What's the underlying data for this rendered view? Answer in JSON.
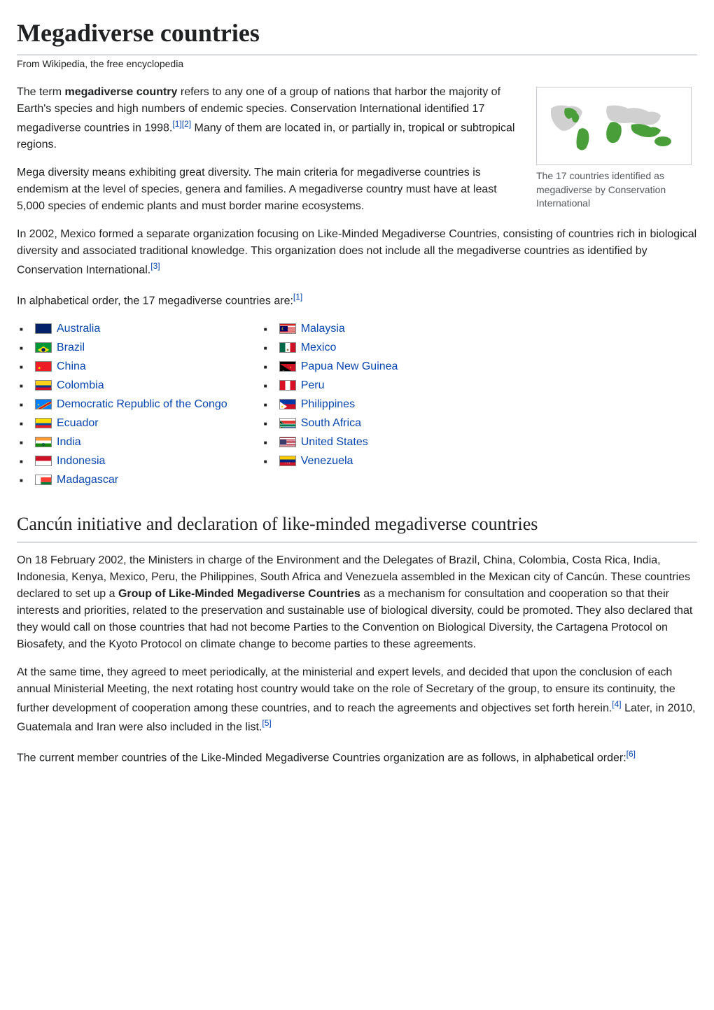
{
  "title": "Megadiverse countries",
  "subtitle": "From Wikipedia, the free encyclopedia",
  "intro_p1_pre": "The term ",
  "intro_bold": "megadiverse country",
  "intro_p1_mid": " refers to any one of a group of nations that harbor the majority of Earth's species and high numbers of endemic species. Conservation International identified 17 megadiverse countries in 1998.",
  "ref1": "[1]",
  "ref2": "[2]",
  "intro_p1_post": " Many of them are located in, or partially in, tropical or subtropical regions.",
  "intro_p2": "Mega diversity means exhibiting great diversity. The main criteria for megadiverse countries is endemism at the level of species, genera and families. A megadiverse country must have at least 5,000 species of endemic plants and must border marine ecosystems.",
  "intro_p3_pre": "In 2002, Mexico formed a separate organization focusing on Like-Minded Megadiverse Countries, consisting of countries rich in biological diversity and associated traditional knowledge. This organization does not include all the megadiverse countries as identified by Conservation International.",
  "ref3": "[3]",
  "intro_p4_pre": "In alphabetical order, the 17 megadiverse countries are:",
  "ref1b": "[1]",
  "caption": "The 17 countries identified as megadiverse by Conservation International",
  "countries_col1": [
    {
      "name": "Australia"
    },
    {
      "name": "Brazil"
    },
    {
      "name": "China"
    },
    {
      "name": "Colombia"
    },
    {
      "name": "Democratic Republic of the Congo"
    },
    {
      "name": "Ecuador"
    },
    {
      "name": "India"
    },
    {
      "name": "Indonesia"
    },
    {
      "name": "Madagascar"
    }
  ],
  "countries_col2": [
    {
      "name": "Malaysia"
    },
    {
      "name": "Mexico"
    },
    {
      "name": "Papua New Guinea"
    },
    {
      "name": "Peru"
    },
    {
      "name": "Philippines"
    },
    {
      "name": "South Africa"
    },
    {
      "name": "United States"
    },
    {
      "name": "Venezuela"
    }
  ],
  "h2": "Cancún initiative and declaration of like-minded megadiverse countries",
  "sec_p1_pre": "On 18 February 2002, the Ministers in charge of the Environment and the Delegates of Brazil, China, Colombia, Costa Rica, India, Indonesia, Kenya, Mexico, Peru, the Philippines, South Africa and Venezuela assembled in the Mexican city of Cancún. These countries declared to set up a ",
  "sec_p1_bold": "Group of Like-Minded Megadiverse Countries",
  "sec_p1_post": " as a mechanism for consultation and cooperation so that their interests and priorities, related to the preservation and sustainable use of biological diversity, could be promoted. They also declared that they would call on those countries that had not become Parties to the Convention on Biological Diversity, the Cartagena Protocol on Biosafety, and the Kyoto Protocol on climate change to become parties to these agreements.",
  "sec_p2_pre": "At the same time, they agreed to meet periodically, at the ministerial and expert levels, and decided that upon the conclusion of each annual Ministerial Meeting, the next rotating host country would take on the role of Secretary of the group, to ensure its continuity, the further development of cooperation among these countries, and to reach the agreements and objectives set forth herein.",
  "ref4": "[4]",
  "sec_p2_mid": " Later, in 2010, Guatemala and Iran were also included in the list.",
  "ref5": "[5]",
  "sec_p3_pre": "The current member countries of the Like-Minded Megadiverse Countries organization are as follows, in alphabetical order:",
  "ref6": "[6]",
  "flags": {
    "Australia": {
      "bg": "#012169",
      "deco": "radial-gradient(circle at 75% 55%, white 1px, transparent 2px), radial-gradient(circle at 85% 30%, white 1px, transparent 2px), linear-gradient(135deg, transparent 45%, #c8102e 45%, #c8102e 55%, transparent 55%), linear-gradient(45deg, transparent 45%, #c8102e 45%, #c8102e 55%, transparent 55%)",
      "decoPos": "0 0, 0 0, 0 0/12px 8px no-repeat, 0 0/12px 8px no-repeat"
    },
    "Brazil": {
      "bg": "#009739",
      "svg": "<svg viewBox='0 0 24 15'><polygon points='12,2 21,7.5 12,13 3,7.5' fill='%23FEDD00'/><circle cx='12' cy='7.5' r='3' fill='%23012169'/></svg>"
    },
    "China": {
      "bg": "#EE1C25",
      "svg": "<svg viewBox='0 0 24 15'><text x='3' y='8' font-size='6' fill='%23FFFF00'>★</text></svg>"
    },
    "Colombia": {
      "bg": "linear-gradient(to bottom, #FCD116 0%, #FCD116 50%, #003893 50%, #003893 75%, #CE1126 75%, #CE1126 100%)"
    },
    "Democratic Republic of the Congo": {
      "bg": "#007FFF",
      "svg": "<svg viewBox='0 0 24 15'><polygon points='0,12 0,15 3,15 24,3 24,0 21,0' fill='%23F7D618'/><polygon points='0,13 0,15 1.5,15 24,2 24,0 22.5,0' fill='%23CE1021'/><text x='2' y='6' font-size='5' fill='%23F7D618'>★</text></svg>"
    },
    "Ecuador": {
      "bg": "linear-gradient(to bottom, #FFDD00 0%, #FFDD00 50%, #034EA2 50%, #034EA2 75%, #EC1C24 75%, #EC1C24 100%)"
    },
    "India": {
      "bg": "linear-gradient(to bottom, #FF9933 0%, #FF9933 33%, #FFFFFF 33%, #FFFFFF 67%, #138808 67%, #138808 100%)",
      "svg": "<svg viewBox='0 0 24 15'><circle cx='12' cy='7.5' r='1.8' fill='none' stroke='%23000080' stroke-width='0.5'/></svg>"
    },
    "Indonesia": {
      "bg": "linear-gradient(to bottom, #CE1126 0%, #CE1126 50%, #FFFFFF 50%, #FFFFFF 100%)"
    },
    "Madagascar": {
      "bg": "#FFFFFF",
      "svg": "<svg viewBox='0 0 24 15'><rect x='8' y='0' width='16' height='7.5' fill='%23FC3D32'/><rect x='8' y='7.5' width='16' height='7.5' fill='%23007E3A'/></svg>"
    },
    "Malaysia": {
      "bg": "repeating-linear-gradient(to bottom, #CC0001 0, #CC0001 1.07px, #FFFFFF 1.07px, #FFFFFF 2.14px)",
      "svg": "<svg viewBox='0 0 24 15'><rect x='0' y='0' width='12' height='8' fill='%23010066'/><circle cx='5' cy='4' r='2.2' fill='%23FFCC00'/><circle cx='5.8' cy='4' r='2' fill='%23010066'/></svg>"
    },
    "Mexico": {
      "bg": "linear-gradient(to right, #006847 0%, #006847 33%, #FFFFFF 33%, #FFFFFF 67%, #CE1126 67%, #CE1126 100%)",
      "svg": "<svg viewBox='0 0 24 15'><circle cx='12' cy='7.5' r='1.5' fill='%238B6F47'/></svg>"
    },
    "Papua New Guinea": {
      "bg": "#000000",
      "svg": "<svg viewBox='0 0 24 15'><polygon points='0,0 24,0 24,15' fill='%23CE1126'/><text x='14' y='7' font-size='5' fill='%23FCD116'>✦</text><text x='4' y='12' font-size='3' fill='white'>✦</text></svg>"
    },
    "Peru": {
      "bg": "linear-gradient(to right, #D91023 0%, #D91023 33%, #FFFFFF 33%, #FFFFFF 67%, #D91023 67%, #D91023 100%)"
    },
    "Philippines": {
      "bg": "linear-gradient(to bottom, #0038A8 0%, #0038A8 50%, #CE1126 50%, #CE1126 100%)",
      "svg": "<svg viewBox='0 0 24 15'><polygon points='0,0 11,7.5 0,15' fill='white'/><circle cx='3.5' cy='7.5' r='1.5' fill='%23FCD116'/></svg>"
    },
    "South Africa": {
      "bg": "#FFFFFF",
      "svg": "<svg viewBox='0 0 24 15'><rect x='0' y='0' width='24' height='5' fill='%23DE3831'/><rect x='0' y='10' width='24' height='5' fill='%23002395'/><polygon points='0,0 10,7.5 0,15' fill='%23007A4D'/><polygon points='0,2 7,7.5 0,13' fill='%23000000'/><polygon points='0,3.5 5,7.5 0,11.5' fill='%23FFB612'/><rect x='0' y='5.5' width='24' height='4' fill='%23007A4D'/><rect x='0' y='5' width='24' height='0.8' fill='white'/><rect x='0' y='9.2' width='24' height='0.8' fill='white'/></svg>"
    },
    "United States": {
      "bg": "repeating-linear-gradient(to bottom, #B22234 0, #B22234 1.15px, #FFFFFF 1.15px, #FFFFFF 2.3px)",
      "svg": "<svg viewBox='0 0 24 15'><rect x='0' y='0' width='10' height='8' fill='%233C3B6E'/></svg>"
    },
    "Venezuela": {
      "bg": "linear-gradient(to bottom, #FFCC00 0%, #FFCC00 33%, #00247D 33%, #00247D 67%, #CF142B 67%, #CF142B 100%)",
      "svg": "<svg viewBox='0 0 24 15'><text x='8' y='8' font-size='2.5' fill='white'>✦ ✦ ✦</text></svg>"
    }
  }
}
